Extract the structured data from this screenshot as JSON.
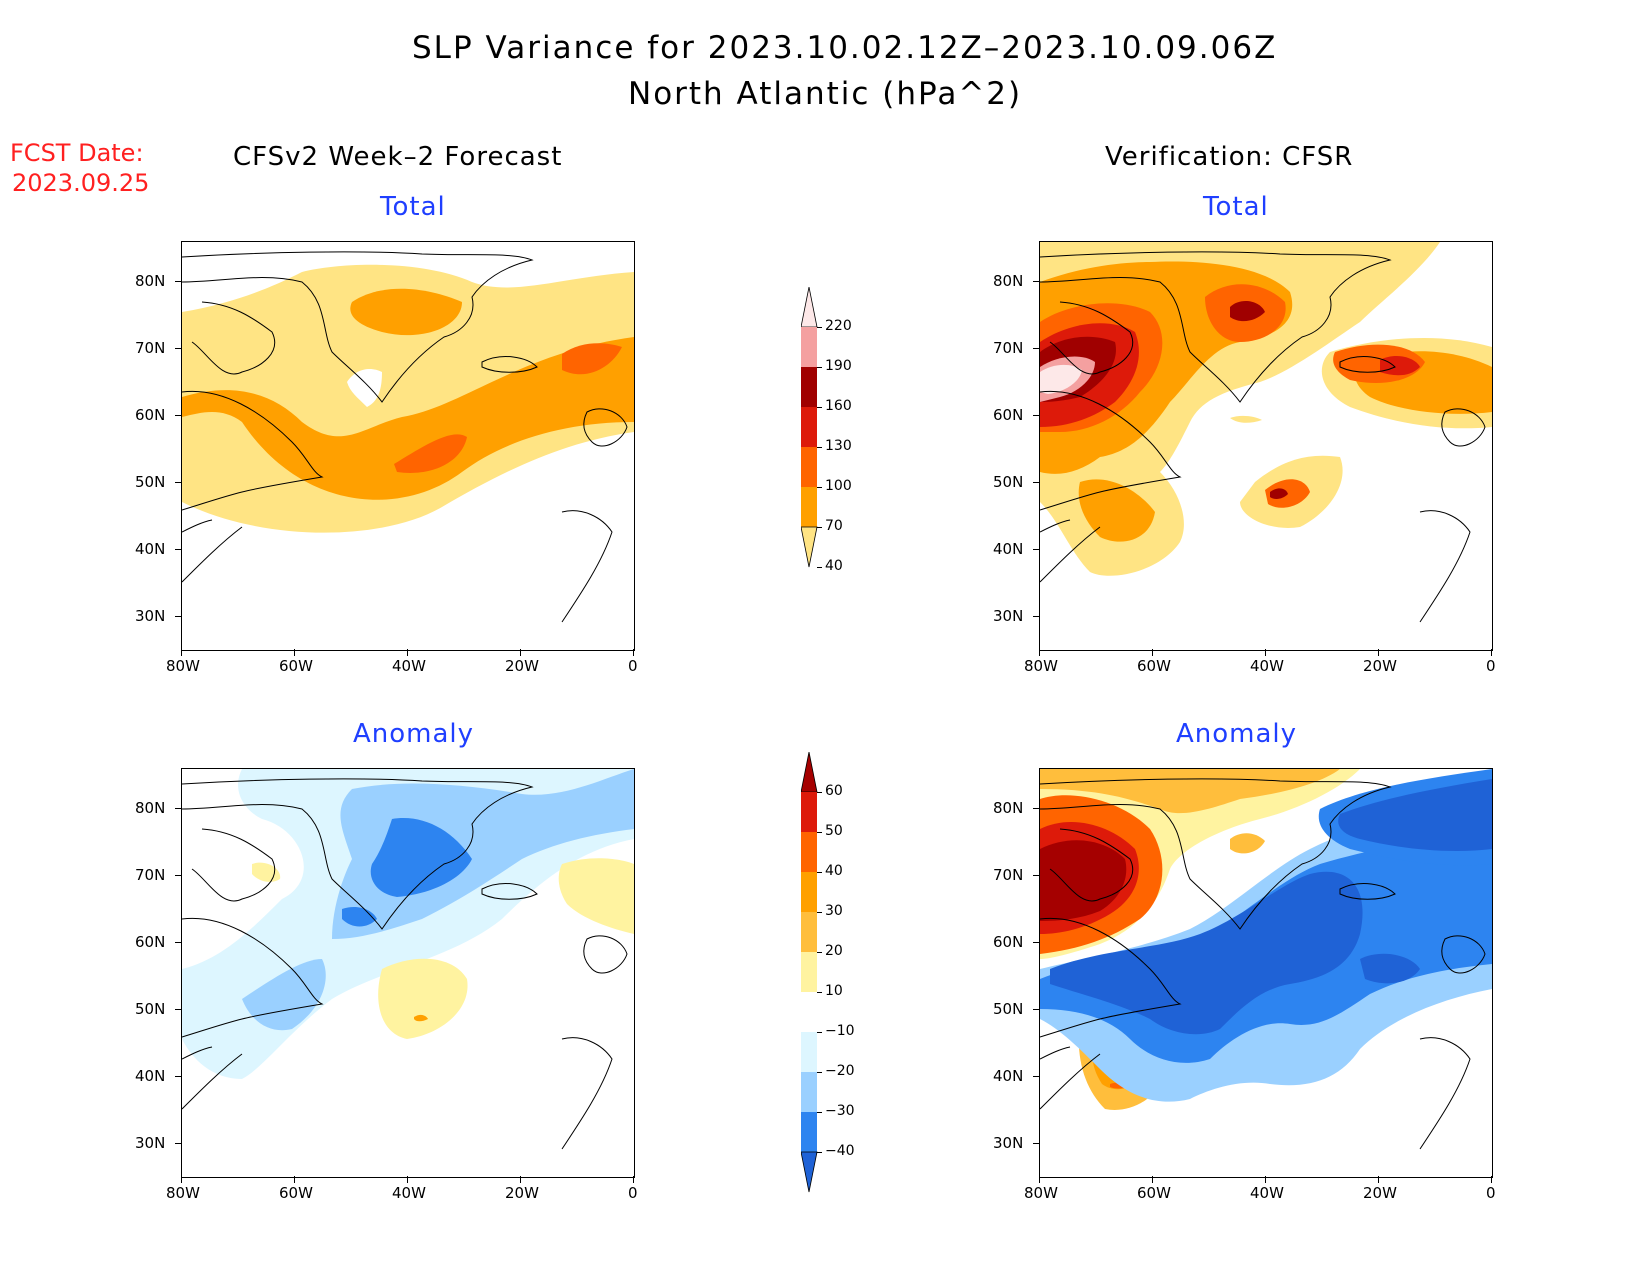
{
  "header": {
    "title_line1": "SLP Variance for 2023.10.02.12Z–2023.10.09.06Z",
    "title_line2": "North Atlantic (hPa^2)",
    "fcst_line1": "FCST Date:",
    "fcst_line2": "2023.09.25"
  },
  "columns": {
    "left_title": "CFSv2 Week–2 Forecast",
    "right_title": "Verification: CFSR"
  },
  "panels": {
    "fc_total_title": "Total",
    "ver_total_title": "Total",
    "fc_anom_title": "Anomaly",
    "ver_anom_title": "Anomaly"
  },
  "axes": {
    "lat_ticks": [
      "80N",
      "70N",
      "60N",
      "50N",
      "40N",
      "30N"
    ],
    "lon_ticks": [
      "80W",
      "60W",
      "40W",
      "20W",
      "0"
    ]
  },
  "colorbars": {
    "total": {
      "labels": [
        "220",
        "190",
        "160",
        "130",
        "100",
        "70",
        "40"
      ],
      "colors": [
        "#fde8e8",
        "#f4a0a0",
        "#a00000",
        "#dd1a0a",
        "#ff6400",
        "#ffa000",
        "#ffe484"
      ]
    },
    "anomaly": {
      "labels": [
        "60",
        "50",
        "40",
        "30",
        "20",
        "10",
        "−10",
        "−20",
        "−30",
        "−40"
      ],
      "colors": [
        "#a50000",
        "#dd1a0a",
        "#ff6400",
        "#ffa000",
        "#ffbe3c",
        "#fff3a0",
        "#ffffff",
        "#ddf6ff",
        "#9ad0ff",
        "#2d84f0",
        "#1f62d6"
      ]
    }
  }
}
